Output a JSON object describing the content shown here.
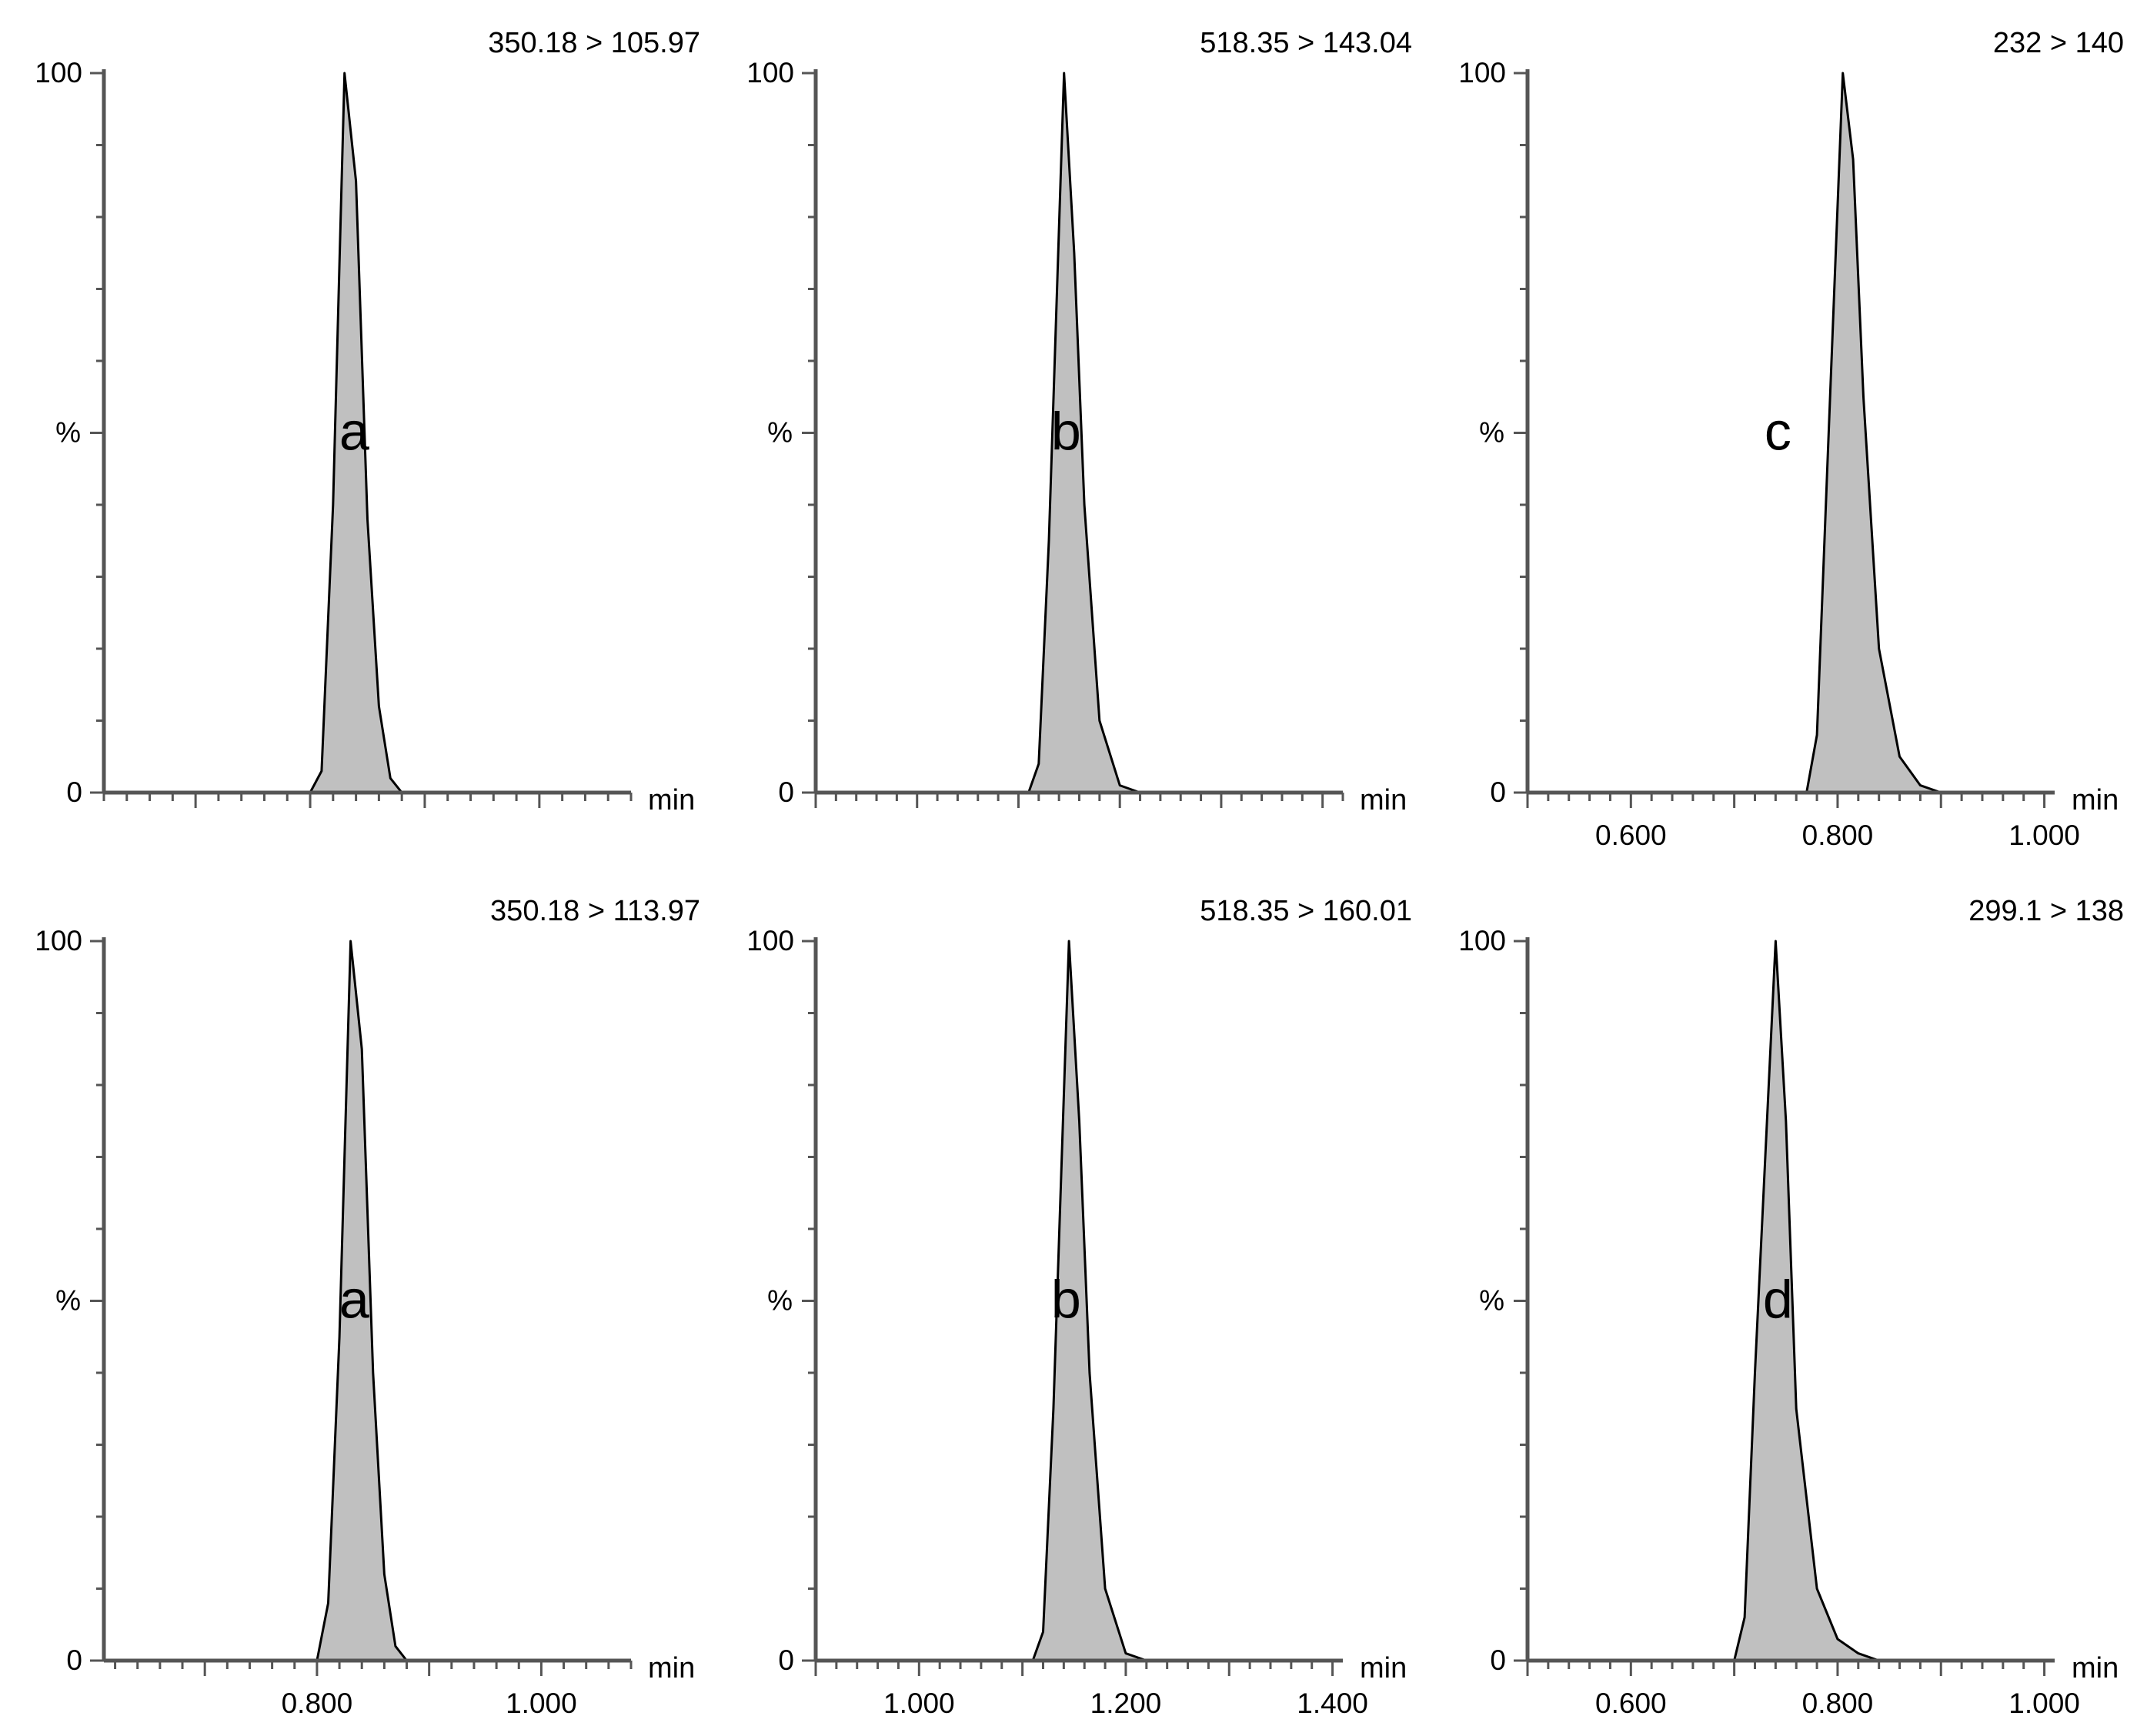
{
  "chart_data": [
    {
      "type": "area",
      "panel": "top-left",
      "transition": "350.18 > 105.97",
      "letter": "a",
      "ylabel": "%",
      "xlabel": "min",
      "y_ticks": [
        "0",
        "100"
      ],
      "x_tick_labels": [],
      "xlim": [
        0.62,
        1.08
      ],
      "ylim": [
        0,
        100
      ],
      "peak": {
        "rt": 0.83,
        "width_left": 0.022,
        "width_right": 0.036,
        "height": 100
      },
      "points": [
        [
          0.62,
          0
        ],
        [
          0.8,
          0
        ],
        [
          0.81,
          3
        ],
        [
          0.82,
          40
        ],
        [
          0.83,
          100
        ],
        [
          0.84,
          85
        ],
        [
          0.85,
          38
        ],
        [
          0.86,
          12
        ],
        [
          0.87,
          2
        ],
        [
          0.88,
          0
        ],
        [
          1.08,
          0
        ]
      ]
    },
    {
      "type": "area",
      "panel": "top-middle",
      "transition": "518.35 > 143.04",
      "letter": "b",
      "ylabel": "%",
      "xlabel": "min",
      "y_ticks": [
        "0",
        "100"
      ],
      "x_tick_labels": [],
      "xlim": [
        0.9,
        1.42
      ],
      "ylim": [
        0,
        100
      ],
      "peak": {
        "rt": 1.145,
        "width_left": 0.03,
        "width_right": 0.045,
        "height": 100
      },
      "points": [
        [
          0.9,
          0
        ],
        [
          1.11,
          0
        ],
        [
          1.12,
          4
        ],
        [
          1.13,
          35
        ],
        [
          1.145,
          100
        ],
        [
          1.155,
          75
        ],
        [
          1.165,
          40
        ],
        [
          1.18,
          10
        ],
        [
          1.2,
          1
        ],
        [
          1.22,
          0
        ],
        [
          1.42,
          0
        ]
      ]
    },
    {
      "type": "area",
      "panel": "top-right",
      "transition": "232 > 140",
      "letter": "c",
      "ylabel": "%",
      "xlabel": "min",
      "y_ticks": [
        "0",
        "100"
      ],
      "x_tick_labels": [
        "0.600",
        "0.800",
        "1.000"
      ],
      "xlim": [
        0.5,
        1.01
      ],
      "ylim": [
        0,
        100
      ],
      "peak": {
        "rt": 0.805,
        "width_left": 0.03,
        "width_right": 0.06,
        "height": 100
      },
      "points": [
        [
          0.5,
          0
        ],
        [
          0.77,
          0
        ],
        [
          0.78,
          8
        ],
        [
          0.79,
          45
        ],
        [
          0.805,
          100
        ],
        [
          0.815,
          88
        ],
        [
          0.825,
          55
        ],
        [
          0.84,
          20
        ],
        [
          0.86,
          5
        ],
        [
          0.88,
          1
        ],
        [
          0.9,
          0
        ],
        [
          1.01,
          0
        ]
      ]
    },
    {
      "type": "area",
      "panel": "bottom-left",
      "transition": "350.18 > 113.97",
      "letter": "a",
      "ylabel": "%",
      "xlabel": "min",
      "y_ticks": [
        "0",
        "100"
      ],
      "x_tick_labels": [
        "0.800",
        "1.000"
      ],
      "xlim": [
        0.61,
        1.08
      ],
      "ylim": [
        0,
        100
      ],
      "peak": {
        "rt": 0.83,
        "width_left": 0.025,
        "width_right": 0.04,
        "height": 100
      },
      "points": [
        [
          0.61,
          0
        ],
        [
          0.8,
          0
        ],
        [
          0.81,
          8
        ],
        [
          0.82,
          45
        ],
        [
          0.83,
          100
        ],
        [
          0.84,
          85
        ],
        [
          0.85,
          40
        ],
        [
          0.86,
          12
        ],
        [
          0.87,
          2
        ],
        [
          0.88,
          0
        ],
        [
          1.08,
          0
        ]
      ]
    },
    {
      "type": "area",
      "panel": "bottom-middle",
      "transition": "518.35 > 160.01",
      "letter": "b",
      "ylabel": "%",
      "xlabel": "min",
      "y_ticks": [
        "0",
        "100"
      ],
      "x_tick_labels": [
        "1.000",
        "1.200",
        "1.400"
      ],
      "xlim": [
        0.9,
        1.41
      ],
      "ylim": [
        0,
        100
      ],
      "peak": {
        "rt": 1.145,
        "width_left": 0.03,
        "width_right": 0.045,
        "height": 100
      },
      "points": [
        [
          0.9,
          0
        ],
        [
          1.11,
          0
        ],
        [
          1.12,
          4
        ],
        [
          1.13,
          35
        ],
        [
          1.145,
          100
        ],
        [
          1.155,
          75
        ],
        [
          1.165,
          40
        ],
        [
          1.18,
          10
        ],
        [
          1.2,
          1
        ],
        [
          1.22,
          0
        ],
        [
          1.41,
          0
        ]
      ]
    },
    {
      "type": "area",
      "panel": "bottom-right",
      "transition": "299.1 > 138",
      "letter": "d",
      "ylabel": "%",
      "xlabel": "min",
      "y_ticks": [
        "0",
        "100"
      ],
      "x_tick_labels": [
        "0.600",
        "0.800",
        "1.000"
      ],
      "xlim": [
        0.5,
        1.01
      ],
      "ylim": [
        0,
        100
      ],
      "peak": {
        "rt": 0.74,
        "width_left": 0.03,
        "width_right": 0.06,
        "height": 100
      },
      "points": [
        [
          0.5,
          0
        ],
        [
          0.7,
          0
        ],
        [
          0.71,
          6
        ],
        [
          0.72,
          40
        ],
        [
          0.74,
          100
        ],
        [
          0.75,
          75
        ],
        [
          0.76,
          35
        ],
        [
          0.78,
          10
        ],
        [
          0.8,
          3
        ],
        [
          0.82,
          1
        ],
        [
          0.84,
          0
        ],
        [
          1.01,
          0
        ]
      ]
    }
  ]
}
